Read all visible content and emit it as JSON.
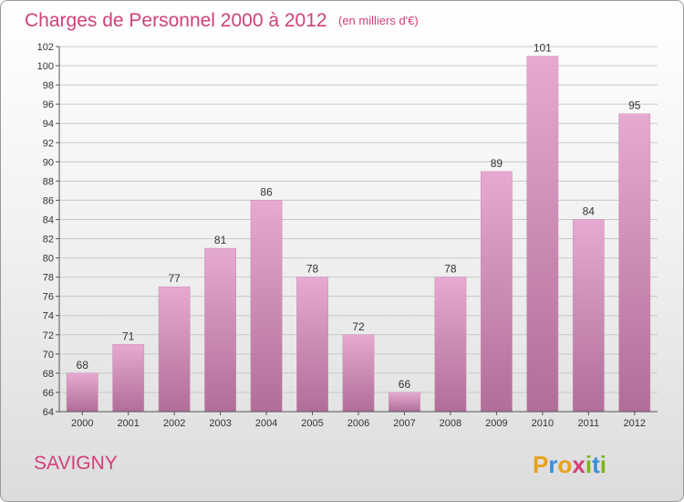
{
  "header": {
    "title": "Charges de Personnel 2000 à 2012",
    "subtitle": "(en milliers d'€)"
  },
  "footer": {
    "city": "SAVIGNY",
    "logo_letters": [
      {
        "ch": "P",
        "color": "#e6a21f"
      },
      {
        "ch": "r",
        "color": "#3b8fd6"
      },
      {
        "ch": "o",
        "color": "#e6a21f"
      },
      {
        "ch": "x",
        "color": "#d0407a"
      },
      {
        "ch": "i",
        "color": "#7ab51d"
      },
      {
        "ch": "t",
        "color": "#3b8fd6"
      },
      {
        "ch": "i",
        "color": "#7ab51d"
      }
    ]
  },
  "colors": {
    "bar_top": "#e6aad0",
    "bar_bottom": "#b06e98",
    "accent": "#d0407a"
  },
  "chart_data": {
    "type": "bar",
    "title": "Charges de Personnel 2000 à 2012",
    "subtitle": "(en milliers d'€)",
    "categories": [
      "2000",
      "2001",
      "2002",
      "2003",
      "2004",
      "2005",
      "2006",
      "2007",
      "2008",
      "2009",
      "2010",
      "2011",
      "2012"
    ],
    "values": [
      68,
      71,
      77,
      81,
      86,
      78,
      72,
      66,
      78,
      89,
      101,
      84,
      95
    ],
    "ylim": [
      64,
      102
    ],
    "ytick_step": 2,
    "grid": true,
    "legend": "none"
  }
}
